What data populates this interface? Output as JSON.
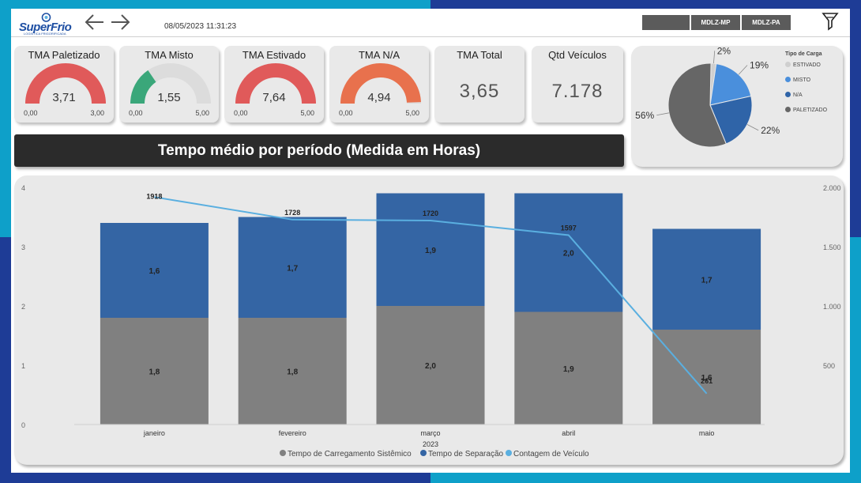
{
  "header": {
    "logo_text": "SuperFrio",
    "logo_sub": "LOGISTICA FRIGORIFICADA",
    "timestamp": "08/05/2023 11:31:23",
    "btn_blank": "",
    "btn_mp": "MDLZ-MP",
    "btn_pa": "MDLZ-PA"
  },
  "kpis": [
    {
      "title": "TMA Paletizado",
      "value": "3,71",
      "min": "0,00",
      "max": "3,00",
      "fraction": 1.0,
      "color": "#e05a5a"
    },
    {
      "title": "TMA Misto",
      "value": "1,55",
      "min": "0,00",
      "max": "5,00",
      "fraction": 0.31,
      "color": "#3aa77a"
    },
    {
      "title": "TMA Estivado",
      "value": "7,64",
      "min": "0,00",
      "max": "5,00",
      "fraction": 1.0,
      "color": "#e05a5a"
    },
    {
      "title": "TMA N/A",
      "value": "4,94",
      "min": "0,00",
      "max": "5,00",
      "fraction": 0.988,
      "color": "#e8714d"
    }
  ],
  "totals": [
    {
      "title": "TMA Total",
      "value": "3,65"
    },
    {
      "title": "Qtd Veículos",
      "value": "7.178"
    }
  ],
  "pie": {
    "legend_title": "Tipo de Carga",
    "slices": [
      {
        "name": "ESTIVADO",
        "value": 2,
        "label": "2%",
        "color": "#cfcfcf"
      },
      {
        "name": "MISTO",
        "value": 19,
        "label": "19%",
        "color": "#4a8fdc"
      },
      {
        "name": "N/A",
        "value": 22,
        "label": "22%",
        "color": "#2f64a8"
      },
      {
        "name": "PALETIZADO",
        "value": 56,
        "label": "56%",
        "color": "#666666"
      }
    ]
  },
  "banner": "Tempo médio por período (Medida em Horas)",
  "chart_data": {
    "type": "bar",
    "stacked": true,
    "categories": [
      "janeiro",
      "fevereiro",
      "março",
      "abril",
      "maio"
    ],
    "xlabel": "2023",
    "year_label": "2023",
    "ylim": [
      0,
      4
    ],
    "y_ticks": [
      "0",
      "1",
      "2",
      "3",
      "4"
    ],
    "y2lim": [
      0,
      2000
    ],
    "y2_ticks": [
      "500",
      "1.000",
      "1.500",
      "2.000"
    ],
    "series": [
      {
        "name": "Tempo de Carregamento Sistêmico",
        "values": [
          1.8,
          1.8,
          2.0,
          1.9,
          1.6
        ],
        "labels": [
          "1,8",
          "1,8",
          "2,0",
          "1,9",
          "1,6"
        ],
        "color": "#808080"
      },
      {
        "name": "Tempo de Separação",
        "values": [
          1.6,
          1.7,
          1.9,
          2.0,
          1.7
        ],
        "labels": [
          "1,6",
          "1,7",
          "1,9",
          "2,0",
          "1,7"
        ],
        "color": "#3465a4"
      }
    ],
    "line": {
      "name": "Contagem de Veículo",
      "values": [
        1918,
        1728,
        1720,
        1597,
        261
      ],
      "labels": [
        "1918",
        "1728",
        "1720",
        "1597",
        "261"
      ],
      "color": "#5aafe0"
    },
    "legend_position": "bottom",
    "grid": false
  }
}
